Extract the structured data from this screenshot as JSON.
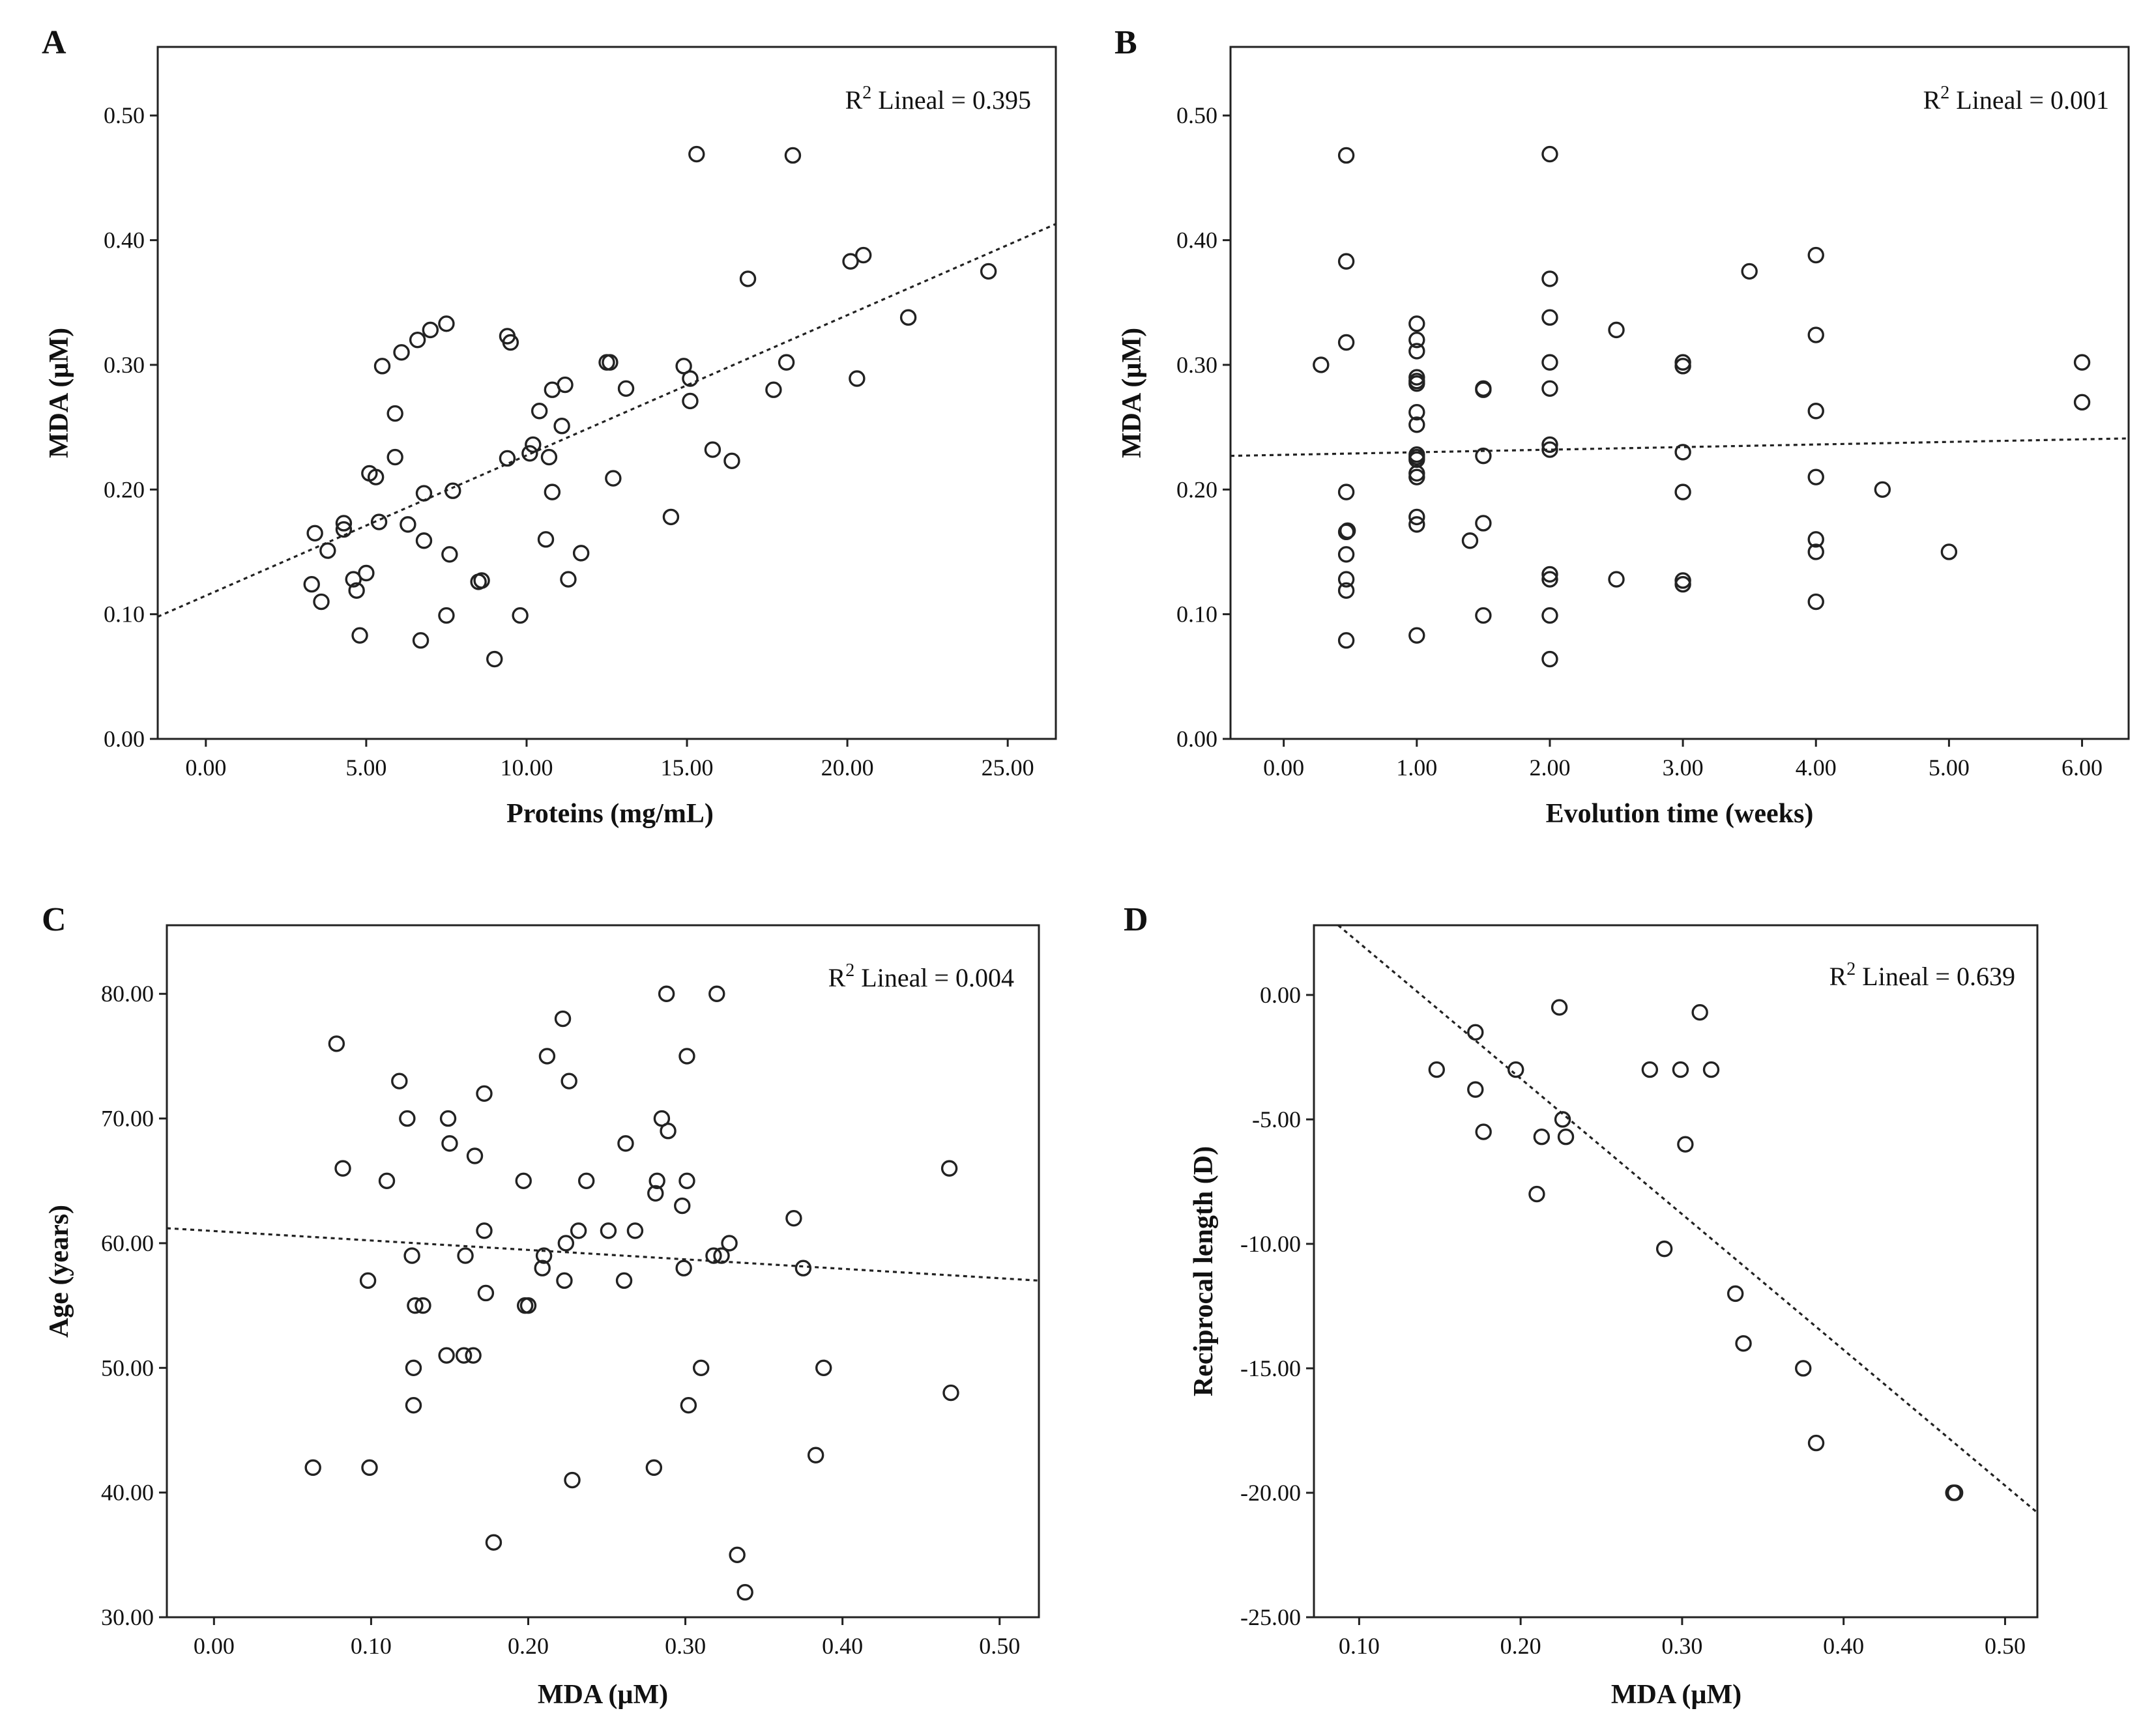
{
  "chart_data": [
    {
      "id": "A",
      "type": "scatter",
      "panel_label": "A",
      "title": "",
      "xlabel": "Proteins (mg/mL)",
      "ylabel": "MDA (µM)",
      "xlim": [
        -1.5,
        26.5
      ],
      "ylim": [
        0,
        0.555
      ],
      "xticks": [
        0,
        5,
        10,
        15,
        20,
        25
      ],
      "xtick_labels": [
        "0.00",
        "5.00",
        "10.00",
        "15.00",
        "20.00",
        "25.00"
      ],
      "yticks": [
        0,
        0.1,
        0.2,
        0.3,
        0.4,
        0.5
      ],
      "ytick_labels": [
        "0.00",
        "0.10",
        "0.20",
        "0.30",
        "0.40",
        "0.50"
      ],
      "r2_prefix": "R",
      "r2_sup": "2",
      "r2_text": " Lineal = 0.395",
      "fit_line": {
        "x": [
          -1.5,
          26.5
        ],
        "y": [
          0.098,
          0.413
        ]
      },
      "points": [
        [
          3.3,
          0.124
        ],
        [
          3.4,
          0.165
        ],
        [
          3.6,
          0.11
        ],
        [
          3.8,
          0.151
        ],
        [
          4.3,
          0.168
        ],
        [
          4.3,
          0.173
        ],
        [
          4.6,
          0.128
        ],
        [
          4.7,
          0.119
        ],
        [
          4.8,
          0.083
        ],
        [
          5.0,
          0.133
        ],
        [
          5.1,
          0.213
        ],
        [
          5.3,
          0.21
        ],
        [
          5.4,
          0.174
        ],
        [
          5.5,
          0.299
        ],
        [
          5.9,
          0.226
        ],
        [
          5.9,
          0.261
        ],
        [
          6.1,
          0.31
        ],
        [
          6.3,
          0.172
        ],
        [
          6.6,
          0.32
        ],
        [
          6.7,
          0.079
        ],
        [
          6.8,
          0.197
        ],
        [
          6.8,
          0.159
        ],
        [
          7.0,
          0.328
        ],
        [
          7.5,
          0.333
        ],
        [
          7.5,
          0.099
        ],
        [
          7.6,
          0.148
        ],
        [
          7.7,
          0.199
        ],
        [
          8.5,
          0.126
        ],
        [
          8.6,
          0.127
        ],
        [
          9.0,
          0.064
        ],
        [
          9.4,
          0.323
        ],
        [
          9.5,
          0.318
        ],
        [
          9.4,
          0.225
        ],
        [
          9.8,
          0.099
        ],
        [
          10.1,
          0.229
        ],
        [
          10.2,
          0.236
        ],
        [
          10.4,
          0.263
        ],
        [
          10.6,
          0.16
        ],
        [
          10.7,
          0.226
        ],
        [
          10.8,
          0.198
        ],
        [
          10.8,
          0.28
        ],
        [
          11.1,
          0.251
        ],
        [
          11.2,
          0.284
        ],
        [
          11.3,
          0.128
        ],
        [
          11.7,
          0.149
        ],
        [
          12.5,
          0.302
        ],
        [
          12.6,
          0.302
        ],
        [
          12.7,
          0.209
        ],
        [
          13.1,
          0.281
        ],
        [
          14.5,
          0.178
        ],
        [
          14.9,
          0.299
        ],
        [
          15.1,
          0.271
        ],
        [
          15.1,
          0.289
        ],
        [
          15.3,
          0.469
        ],
        [
          15.8,
          0.232
        ],
        [
          16.4,
          0.223
        ],
        [
          16.9,
          0.369
        ],
        [
          17.7,
          0.28
        ],
        [
          18.1,
          0.302
        ],
        [
          18.3,
          0.468
        ],
        [
          20.1,
          0.383
        ],
        [
          20.3,
          0.289
        ],
        [
          20.5,
          0.388
        ],
        [
          21.9,
          0.338
        ],
        [
          24.4,
          0.375
        ]
      ]
    },
    {
      "id": "B",
      "type": "scatter",
      "panel_label": "B",
      "title": "",
      "xlabel": "Evolution time (weeks)",
      "ylabel": "MDA (µM)",
      "xlim": [
        -0.4,
        6.35
      ],
      "ylim": [
        0,
        0.555
      ],
      "xticks": [
        0,
        1,
        2,
        3,
        4,
        5,
        6
      ],
      "xtick_labels": [
        "0.00",
        "1.00",
        "2.00",
        "3.00",
        "4.00",
        "5.00",
        "6.00"
      ],
      "yticks": [
        0,
        0.1,
        0.2,
        0.3,
        0.4,
        0.5
      ],
      "ytick_labels": [
        "0.00",
        "0.10",
        "0.20",
        "0.30",
        "0.40",
        "0.50"
      ],
      "r2_prefix": "R",
      "r2_sup": "2",
      "r2_text": " Lineal = 0.001",
      "fit_line": {
        "x": [
          -0.4,
          6.35
        ],
        "y": [
          0.227,
          0.241
        ]
      },
      "points": [
        [
          0.28,
          0.3
        ],
        [
          0.47,
          0.468
        ],
        [
          0.47,
          0.383
        ],
        [
          0.47,
          0.318
        ],
        [
          0.47,
          0.198
        ],
        [
          0.47,
          0.166
        ],
        [
          0.48,
          0.167
        ],
        [
          0.47,
          0.148
        ],
        [
          0.47,
          0.128
        ],
        [
          0.47,
          0.119
        ],
        [
          0.47,
          0.079
        ],
        [
          1.0,
          0.333
        ],
        [
          1.0,
          0.32
        ],
        [
          1.0,
          0.311
        ],
        [
          1.0,
          0.29
        ],
        [
          1.0,
          0.287
        ],
        [
          1.0,
          0.285
        ],
        [
          1.0,
          0.262
        ],
        [
          1.0,
          0.252
        ],
        [
          1.0,
          0.228
        ],
        [
          1.0,
          0.226
        ],
        [
          1.0,
          0.224
        ],
        [
          1.0,
          0.213
        ],
        [
          1.0,
          0.21
        ],
        [
          1.0,
          0.178
        ],
        [
          1.0,
          0.172
        ],
        [
          1.0,
          0.083
        ],
        [
          1.4,
          0.159
        ],
        [
          1.5,
          0.281
        ],
        [
          1.5,
          0.28
        ],
        [
          1.5,
          0.227
        ],
        [
          1.5,
          0.173
        ],
        [
          1.5,
          0.099
        ],
        [
          2.0,
          0.469
        ],
        [
          2.0,
          0.369
        ],
        [
          2.0,
          0.338
        ],
        [
          2.0,
          0.302
        ],
        [
          2.0,
          0.281
        ],
        [
          2.0,
          0.236
        ],
        [
          2.0,
          0.232
        ],
        [
          2.0,
          0.132
        ],
        [
          2.0,
          0.128
        ],
        [
          2.0,
          0.099
        ],
        [
          2.0,
          0.064
        ],
        [
          2.5,
          0.328
        ],
        [
          2.5,
          0.128
        ],
        [
          3.0,
          0.302
        ],
        [
          3.0,
          0.299
        ],
        [
          3.0,
          0.23
        ],
        [
          3.0,
          0.198
        ],
        [
          3.0,
          0.127
        ],
        [
          3.0,
          0.124
        ],
        [
          3.5,
          0.375
        ],
        [
          4.0,
          0.388
        ],
        [
          4.0,
          0.324
        ],
        [
          4.0,
          0.263
        ],
        [
          4.0,
          0.21
        ],
        [
          4.0,
          0.16
        ],
        [
          4.0,
          0.15
        ],
        [
          4.0,
          0.11
        ],
        [
          4.5,
          0.2
        ],
        [
          5.0,
          0.15
        ],
        [
          6.0,
          0.302
        ],
        [
          6.0,
          0.27
        ]
      ]
    },
    {
      "id": "C",
      "type": "scatter",
      "panel_label": "C",
      "title": "",
      "xlabel": "MDA (µM)",
      "ylabel": "Age (years)",
      "xlim": [
        -0.03,
        0.525
      ],
      "ylim": [
        30,
        85.5
      ],
      "xticks": [
        0,
        0.1,
        0.2,
        0.3,
        0.4,
        0.5
      ],
      "xtick_labels": [
        "0.00",
        "0.10",
        "0.20",
        "0.30",
        "0.40",
        "0.50"
      ],
      "yticks": [
        30,
        40,
        50,
        60,
        70,
        80
      ],
      "ytick_labels": [
        "30.00",
        "40.00",
        "50.00",
        "60.00",
        "70.00",
        "80.00"
      ],
      "r2_prefix": "R",
      "r2_sup": "2",
      "r2_text": " Lineal = 0.004",
      "fit_line": {
        "x": [
          -0.03,
          0.525
        ],
        "y": [
          61.2,
          57.0
        ]
      },
      "points": [
        [
          0.063,
          42
        ],
        [
          0.078,
          76
        ],
        [
          0.082,
          66
        ],
        [
          0.098,
          57
        ],
        [
          0.099,
          42
        ],
        [
          0.11,
          65
        ],
        [
          0.118,
          73
        ],
        [
          0.123,
          70
        ],
        [
          0.126,
          59
        ],
        [
          0.127,
          50
        ],
        [
          0.127,
          47
        ],
        [
          0.128,
          55
        ],
        [
          0.133,
          55
        ],
        [
          0.148,
          51
        ],
        [
          0.149,
          70
        ],
        [
          0.15,
          68
        ],
        [
          0.159,
          51
        ],
        [
          0.16,
          59
        ],
        [
          0.165,
          51
        ],
        [
          0.166,
          67
        ],
        [
          0.172,
          72
        ],
        [
          0.172,
          61
        ],
        [
          0.173,
          56
        ],
        [
          0.178,
          36
        ],
        [
          0.197,
          65
        ],
        [
          0.198,
          55
        ],
        [
          0.2,
          55
        ],
        [
          0.209,
          58
        ],
        [
          0.21,
          59
        ],
        [
          0.212,
          75
        ],
        [
          0.222,
          78
        ],
        [
          0.223,
          57
        ],
        [
          0.224,
          60
        ],
        [
          0.226,
          73
        ],
        [
          0.228,
          41
        ],
        [
          0.232,
          61
        ],
        [
          0.237,
          65
        ],
        [
          0.251,
          61
        ],
        [
          0.261,
          57
        ],
        [
          0.262,
          68
        ],
        [
          0.268,
          61
        ],
        [
          0.28,
          42
        ],
        [
          0.281,
          64
        ],
        [
          0.282,
          65
        ],
        [
          0.285,
          70
        ],
        [
          0.288,
          80
        ],
        [
          0.289,
          69
        ],
        [
          0.298,
          63
        ],
        [
          0.299,
          58
        ],
        [
          0.301,
          75
        ],
        [
          0.301,
          65
        ],
        [
          0.302,
          47
        ],
        [
          0.31,
          50
        ],
        [
          0.318,
          59
        ],
        [
          0.32,
          80
        ],
        [
          0.323,
          59
        ],
        [
          0.328,
          60
        ],
        [
          0.333,
          35
        ],
        [
          0.338,
          32
        ],
        [
          0.369,
          62
        ],
        [
          0.375,
          58
        ],
        [
          0.383,
          43
        ],
        [
          0.388,
          50
        ],
        [
          0.468,
          66
        ],
        [
          0.469,
          48
        ]
      ]
    },
    {
      "id": "D",
      "type": "scatter",
      "panel_label": "D",
      "title": "",
      "xlabel": "MDA (µM)",
      "ylabel": "Reciprocal length (D)",
      "xlim": [
        0.072,
        0.52
      ],
      "ylim": [
        -25,
        2.8
      ],
      "xticks": [
        0.1,
        0.2,
        0.3,
        0.4,
        0.5
      ],
      "xtick_labels": [
        "0.10",
        "0.20",
        "0.30",
        "0.40",
        "0.50"
      ],
      "yticks": [
        -25,
        -20,
        -15,
        -10,
        -5,
        0
      ],
      "ytick_labels": [
        "-25.00",
        "-20.00",
        "-15.00",
        "-10.00",
        "-5.00",
        "0.00"
      ],
      "r2_prefix": "R",
      "r2_sup": "2",
      "r2_text": " Lineal = 0.639",
      "fit_line": {
        "x": [
          0.087,
          0.52
        ],
        "y": [
          2.8,
          -20.8
        ]
      },
      "points": [
        [
          0.148,
          -3.0
        ],
        [
          0.172,
          -1.5
        ],
        [
          0.172,
          -3.8
        ],
        [
          0.177,
          -5.5
        ],
        [
          0.197,
          -3.0
        ],
        [
          0.21,
          -8.0
        ],
        [
          0.213,
          -5.7
        ],
        [
          0.224,
          -0.5
        ],
        [
          0.226,
          -5.0
        ],
        [
          0.228,
          -5.7
        ],
        [
          0.28,
          -3.0
        ],
        [
          0.289,
          -10.2
        ],
        [
          0.299,
          -3.0
        ],
        [
          0.302,
          -6.0
        ],
        [
          0.311,
          -0.7
        ],
        [
          0.318,
          -3.0
        ],
        [
          0.333,
          -12.0
        ],
        [
          0.338,
          -14.0
        ],
        [
          0.375,
          -15.0
        ],
        [
          0.383,
          -18.0
        ],
        [
          0.468,
          -20.0
        ],
        [
          0.469,
          -20.0
        ]
      ]
    }
  ]
}
